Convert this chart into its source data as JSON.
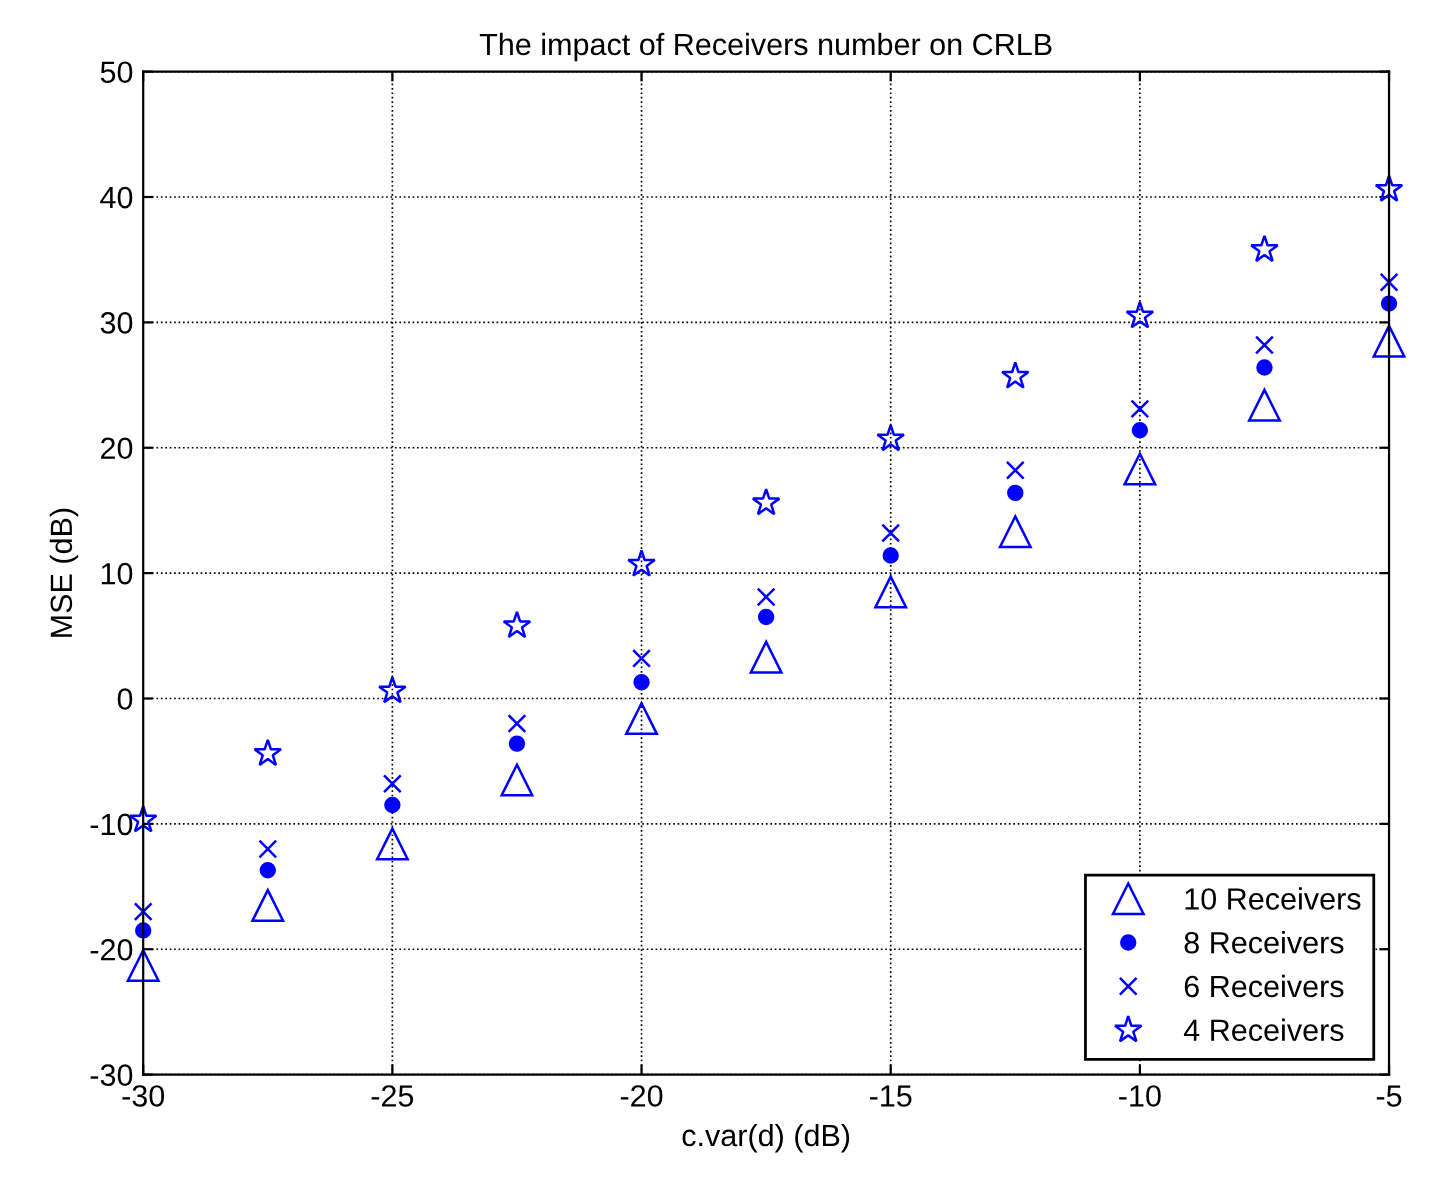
{
  "chart_data": {
    "type": "scatter",
    "title": "The impact of Receivers number on CRLB",
    "xlabel": "c.var(d) (dB)",
    "ylabel": "MSE (dB)",
    "x": [
      -30,
      -27.5,
      -25,
      -22.5,
      -20,
      -17.5,
      -15,
      -12.5,
      -10,
      -7.5,
      -5
    ],
    "series": [
      {
        "name": "10 Receivers",
        "color": "#0000ff",
        "marker": "triangle",
        "values": [
          -21.3,
          -16.5,
          -11.6,
          -6.5,
          -1.6,
          3.3,
          8.5,
          13.3,
          18.3,
          23.4,
          28.5
        ]
      },
      {
        "name": "8 Receivers",
        "color": "#0000ff",
        "marker": "circle",
        "values": [
          -18.5,
          -13.7,
          -8.5,
          -3.6,
          1.3,
          6.5,
          11.4,
          16.4,
          21.4,
          26.4,
          31.5
        ]
      },
      {
        "name": "6 Receivers",
        "color": "#0000ff",
        "marker": "cross",
        "values": [
          -17,
          -12,
          -6.8,
          -2,
          3.2,
          8.1,
          13.2,
          18.2,
          23.1,
          28.2,
          33.2
        ]
      },
      {
        "name": "4 Receivers",
        "color": "#0000ff",
        "marker": "star",
        "values": [
          -9.7,
          -4.4,
          0.6,
          5.8,
          10.7,
          15.6,
          20.7,
          25.7,
          30.5,
          35.8,
          40.6
        ]
      }
    ],
    "xlim": [
      -30,
      -5
    ],
    "xticks": [
      -30,
      -25,
      -20,
      -15,
      -10,
      -5
    ],
    "ylim": [
      -30,
      50
    ],
    "yticks": [
      -30,
      -20,
      -10,
      0,
      10,
      20,
      30,
      40,
      50
    ],
    "grid": true,
    "legend": "bottom right"
  }
}
